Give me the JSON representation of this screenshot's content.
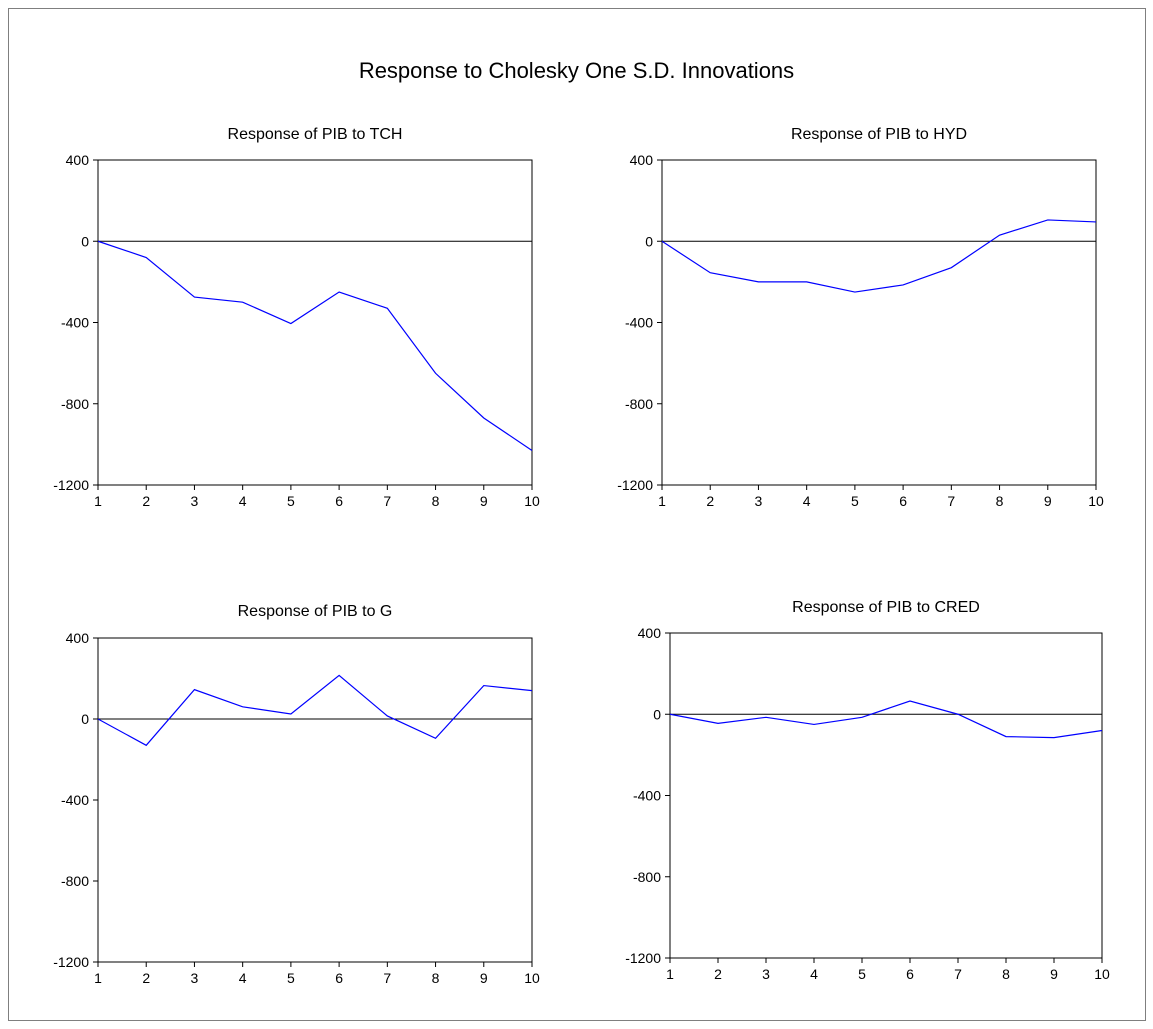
{
  "title": "Response to Cholesky One S.D. Innovations",
  "colors": {
    "line": "#0000ff",
    "axis": "#000000",
    "zero": "#000000"
  },
  "chart_data": [
    {
      "type": "line",
      "title": "Response of PIB to TCH",
      "x": [
        1,
        2,
        3,
        4,
        5,
        6,
        7,
        8,
        9,
        10
      ],
      "xticks": [
        "1",
        "2",
        "3",
        "4",
        "5",
        "6",
        "7",
        "8",
        "9",
        "10"
      ],
      "yticks": [
        "400",
        "0",
        "-400",
        "-800",
        "-1200"
      ],
      "ylim": [
        -1200,
        400
      ],
      "series": [
        {
          "values": [
            0,
            -80,
            -275,
            -300,
            -405,
            -250,
            -330,
            -650,
            -870,
            -1030
          ]
        }
      ]
    },
    {
      "type": "line",
      "title": "Response of PIB to HYD",
      "x": [
        1,
        2,
        3,
        4,
        5,
        6,
        7,
        8,
        9,
        10
      ],
      "xticks": [
        "1",
        "2",
        "3",
        "4",
        "5",
        "6",
        "7",
        "8",
        "9",
        "10"
      ],
      "yticks": [
        "400",
        "0",
        "-400",
        "-800",
        "-1200"
      ],
      "ylim": [
        -1200,
        400
      ],
      "series": [
        {
          "values": [
            0,
            -155,
            -200,
            -200,
            -250,
            -215,
            -130,
            30,
            105,
            95
          ]
        }
      ]
    },
    {
      "type": "line",
      "title": "Response of PIB to G",
      "x": [
        1,
        2,
        3,
        4,
        5,
        6,
        7,
        8,
        9,
        10
      ],
      "xticks": [
        "1",
        "2",
        "3",
        "4",
        "5",
        "6",
        "7",
        "8",
        "9",
        "10"
      ],
      "yticks": [
        "400",
        "0",
        "-400",
        "-800",
        "-1200"
      ],
      "ylim": [
        -1200,
        400
      ],
      "series": [
        {
          "values": [
            0,
            -130,
            145,
            60,
            25,
            215,
            15,
            -95,
            165,
            140
          ]
        }
      ]
    },
    {
      "type": "line",
      "title": "Response of PIB to CRED",
      "x": [
        1,
        2,
        3,
        4,
        5,
        6,
        7,
        8,
        9,
        10
      ],
      "xticks": [
        "1",
        "2",
        "3",
        "4",
        "5",
        "6",
        "7",
        "8",
        "9",
        "10"
      ],
      "yticks": [
        "400",
        "0",
        "-400",
        "-800",
        "-1200"
      ],
      "ylim": [
        -1200,
        400
      ],
      "series": [
        {
          "values": [
            0,
            -45,
            -15,
            -50,
            -15,
            65,
            0,
            -110,
            -115,
            -80
          ]
        }
      ]
    }
  ]
}
